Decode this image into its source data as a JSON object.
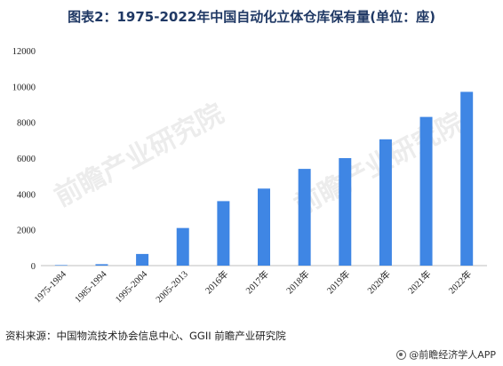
{
  "chart_data": {
    "type": "bar",
    "title": "图表2：1975-2022年中国自动化立体仓库保有量(单位：座)",
    "categories": [
      "1975-1984",
      "1985-1994",
      "1995-2004",
      "2005-2013",
      "2016年",
      "2017年",
      "2018年",
      "2019年",
      "2020年",
      "2021年",
      "2022年"
    ],
    "values": [
      30,
      80,
      650,
      2100,
      3600,
      4300,
      5400,
      6000,
      7050,
      8300,
      9700
    ],
    "ylim": [
      0,
      12000
    ],
    "yticks": [
      0,
      2000,
      4000,
      6000,
      8000,
      10000,
      12000
    ],
    "ytick_labels": [
      "0",
      "2000",
      "4000",
      "6000",
      "8000",
      "10000",
      "12000"
    ],
    "xlabel": "",
    "ylabel": "",
    "grid": false,
    "bar_color": "#3f86e4"
  },
  "source": "资料来源：中国物流技术协会信息中心、GGII 前瞻产业研究院",
  "footer": "@前瞻经济学人APP",
  "watermark": "前瞻产业研究院"
}
